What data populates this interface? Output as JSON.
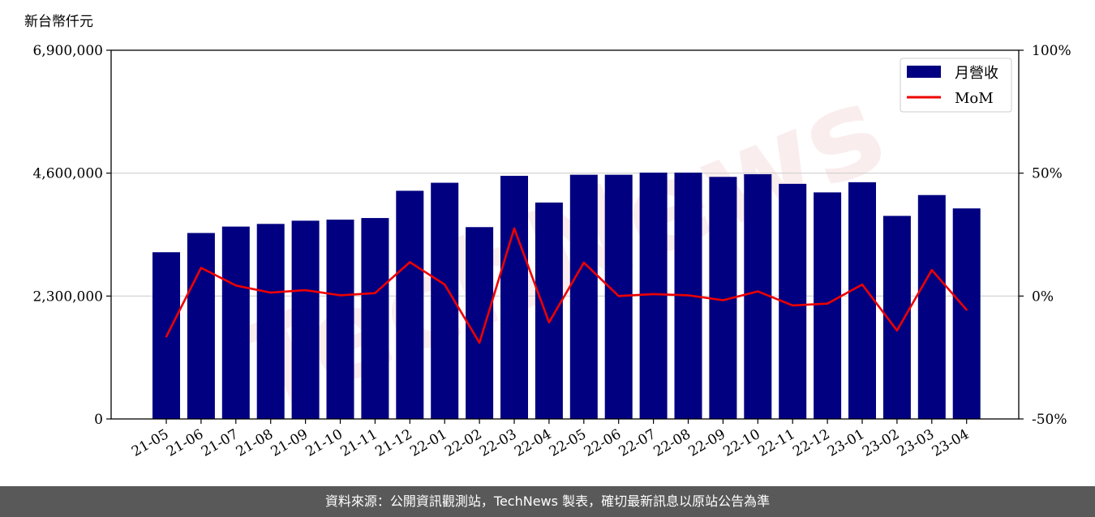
{
  "chart_data": {
    "type": "bar",
    "unit_label": "新台幣仟元",
    "categories": [
      "21-05",
      "21-06",
      "21-07",
      "21-08",
      "21-09",
      "21-10",
      "21-11",
      "21-12",
      "22-01",
      "22-02",
      "22-03",
      "22-04",
      "22-05",
      "22-06",
      "22-07",
      "22-08",
      "22-09",
      "22-10",
      "22-11",
      "22-12",
      "23-01",
      "23-02",
      "23-03",
      "23-04"
    ],
    "series": [
      {
        "name": "月營收",
        "type": "bar",
        "axis": "left",
        "color": "#000080",
        "values": [
          3120000,
          3480000,
          3600000,
          3650000,
          3710000,
          3730000,
          3760000,
          4270000,
          4420000,
          3590000,
          4550000,
          4050000,
          4570000,
          4570000,
          4610000,
          4610000,
          4530000,
          4580000,
          4400000,
          4240000,
          4430000,
          3800000,
          4190000,
          3940000
        ]
      },
      {
        "name": "MoM",
        "type": "line",
        "axis": "right",
        "color": "#ee0000",
        "values": [
          -16.5,
          11.5,
          4.3,
          1.4,
          2.4,
          0.3,
          1.2,
          13.8,
          4.7,
          -19.0,
          27.5,
          -10.7,
          13.6,
          0.0,
          0.8,
          0.3,
          -1.7,
          1.9,
          -3.8,
          -3.1,
          4.7,
          -14.0,
          10.6,
          -5.6
        ]
      }
    ],
    "y_left": {
      "min": 0,
      "max": 6900000,
      "ticks": [
        "0",
        "2,300,000",
        "4,600,000",
        "6,900,000"
      ],
      "tick_values": [
        0,
        2300000,
        4600000,
        6900000
      ]
    },
    "y_right": {
      "min": -50,
      "max": 100,
      "ticks": [
        "-50%",
        "0%",
        "50%",
        "100%"
      ],
      "tick_values": [
        -50,
        0,
        50,
        100
      ]
    },
    "grid": "horizontal",
    "legend_position": "top-right"
  },
  "watermark": "TechNews",
  "footer": "資料來源：公開資訊觀測站，TechNews 製表，確切最新訊息以原站公告為準"
}
